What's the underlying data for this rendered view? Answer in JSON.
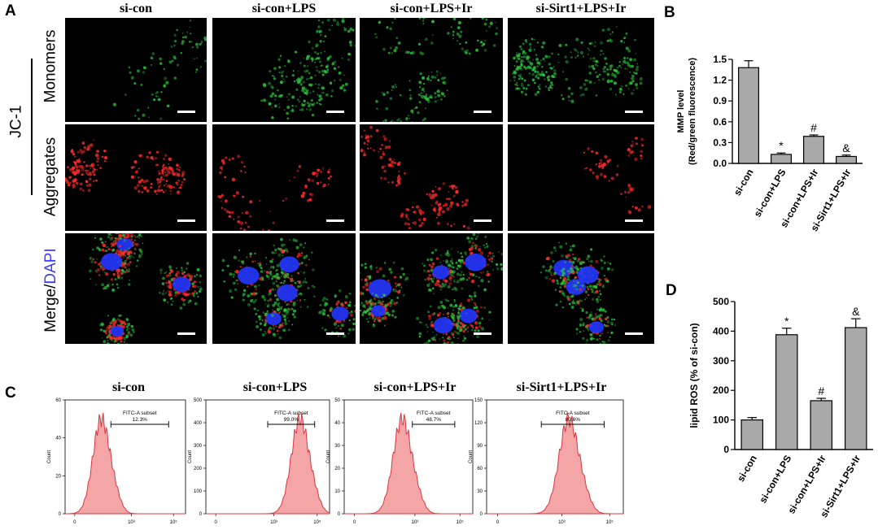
{
  "panels": {
    "A": "A",
    "B": "B",
    "C": "C",
    "D": "D"
  },
  "conditions": [
    "si-con",
    "si-con+LPS",
    "si-con+LPS+Ir",
    "si-Sirt1+LPS+Ir"
  ],
  "panel_a": {
    "group_label": "JC-1",
    "rows": [
      "Monomers",
      "Aggregates"
    ],
    "merge_label": {
      "prefix": "Merge/",
      "suffix": "DAPI"
    },
    "colors": {
      "monomer": "#2ecc40",
      "aggregate": "#ff2a2a",
      "dapi": "#2436ff",
      "suffix": "#3a3aff"
    }
  },
  "panel_c": {
    "gate_label": "FITC-A subset",
    "ylabel": "Count",
    "percents": [
      "12.3%",
      "99.0%",
      "48.7%",
      "80.6%"
    ],
    "yticks": [
      [
        0,
        20,
        40,
        60
      ],
      [
        0,
        100,
        200,
        300,
        400,
        500
      ],
      [
        0,
        10,
        20,
        30,
        40,
        50
      ],
      [
        0,
        30,
        60,
        90,
        120,
        150
      ]
    ],
    "xticks": [
      "0",
      "10³",
      "10⁵"
    ],
    "peak_positions": [
      0.3,
      0.76,
      0.45,
      0.6
    ],
    "fill": "#f4a6a6",
    "stroke": "#d9363e"
  },
  "chart_data": [
    {
      "type": "bar",
      "panel": "B",
      "categories": [
        "si-con",
        "si-con+LPS",
        "si-con+LPS+Ir",
        "si-Sirt1+LPS+Ir"
      ],
      "values": [
        1.38,
        0.13,
        0.39,
        0.1
      ],
      "errors": [
        0.1,
        0.02,
        0.02,
        0.02
      ],
      "markers": [
        "",
        "*",
        "#",
        "&"
      ],
      "ylabel_line1": "MMP level",
      "ylabel_line2": "(Red/green fluorescence)",
      "ylim": [
        0,
        1.5
      ],
      "yticks": [
        "0.0",
        "0.3",
        "0.6",
        "0.9",
        "1.2",
        "1.5"
      ],
      "bar_color": "#a9a9a9"
    },
    {
      "type": "bar",
      "panel": "D",
      "categories": [
        "si-con",
        "si-con+LPS",
        "si-con+LPS+Ir",
        "si-Sirt1+LPS+Ir"
      ],
      "values": [
        100,
        388,
        165,
        412
      ],
      "errors": [
        8,
        22,
        8,
        30
      ],
      "markers": [
        "",
        "*",
        "#",
        "&"
      ],
      "ylabel": "lipid ROS (% of si-con)",
      "ylim": [
        0,
        500
      ],
      "yticks": [
        "0",
        "100",
        "200",
        "300",
        "400",
        "500"
      ],
      "bar_color": "#a9a9a9"
    }
  ]
}
